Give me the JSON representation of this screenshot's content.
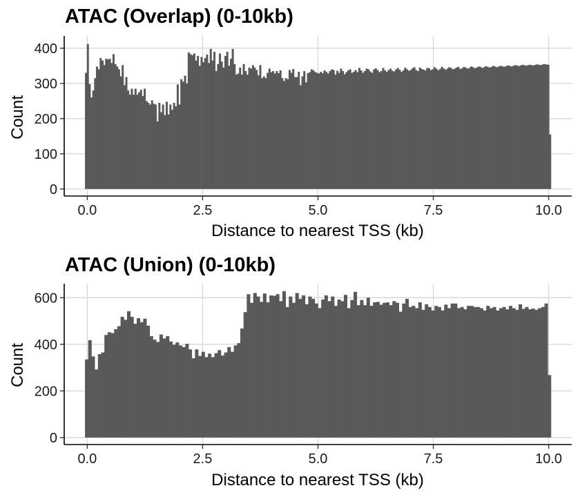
{
  "chart_data": [
    {
      "type": "bar",
      "title": "ATAC (Overlap) (0-10kb)",
      "xlabel": "Distance to nearest TSS (kb)",
      "ylabel": "Count",
      "xlim": [
        -0.5,
        10.5
      ],
      "ylim": [
        -20,
        435
      ],
      "xticks": [
        0.0,
        2.5,
        5.0,
        7.5,
        10.0
      ],
      "xtick_labels": [
        "0.0",
        "2.5",
        "5.0",
        "7.5",
        "10.0"
      ],
      "yticks": [
        0,
        100,
        200,
        300,
        400
      ],
      "yticks_labels": [
        "0",
        "100",
        "200",
        "300",
        "400"
      ],
      "bin_start": -0.05,
      "bin_width": 0.1,
      "values": [
        330,
        412,
        298,
        260,
        280,
        315,
        348,
        340,
        372,
        365,
        352,
        370,
        368,
        370,
        358,
        383,
        355,
        348,
        340,
        320,
        352,
        295,
        318,
        280,
        268,
        285,
        268,
        285,
        268,
        275,
        282,
        264,
        285,
        250,
        245,
        240,
        252,
        242,
        240,
        192,
        245,
        218,
        240,
        210,
        248,
        212,
        240,
        225,
        245,
        235,
        297,
        240,
        312,
        305,
        322,
        300,
        388,
        383,
        380,
        385,
        365,
        378,
        350,
        375,
        360,
        372,
        382,
        358,
        398,
        365,
        390,
        335,
        355,
        385,
        362,
        345,
        378,
        390,
        350,
        370,
        398,
        355,
        325,
        328,
        345,
        325,
        355,
        335,
        325,
        345,
        342,
        352,
        345,
        338,
        323,
        352,
        315,
        320,
        315,
        330,
        342,
        332,
        335,
        328,
        335,
        329,
        337,
        315,
        307,
        315,
        312,
        338,
        330,
        341,
        318,
        318,
        333,
        295,
        320,
        335,
        303,
        329,
        332,
        340,
        337,
        332,
        330,
        328,
        333,
        329,
        337,
        333,
        328,
        335,
        340,
        338,
        325,
        336,
        330,
        342,
        335,
        326,
        332,
        337,
        340,
        330,
        333,
        338,
        332,
        344,
        337,
        330,
        335,
        342,
        340,
        334,
        330,
        340,
        343,
        338,
        332,
        335,
        344,
        337,
        333,
        338,
        342,
        336,
        334,
        340,
        344,
        339,
        333,
        337,
        345,
        340,
        336,
        338,
        343,
        346,
        338,
        335,
        345,
        341,
        339,
        337,
        344,
        343,
        338,
        340,
        346,
        342,
        337,
        341,
        347,
        343,
        339,
        342,
        346,
        344,
        340,
        342,
        345,
        347,
        341,
        343,
        347,
        345,
        342,
        344,
        348,
        346,
        343,
        345,
        348,
        347,
        344,
        346,
        349,
        347,
        345,
        347,
        350,
        348,
        346,
        348,
        350,
        349,
        347,
        349,
        351,
        350,
        348,
        350,
        352,
        351,
        349,
        351,
        353,
        352,
        350,
        352,
        353,
        352,
        351,
        353,
        354,
        353,
        352,
        354,
        355,
        354,
        353,
        155
      ]
    },
    {
      "type": "bar",
      "title": "ATAC (Union) (0-10kb)",
      "xlabel": "Distance to nearest TSS (kb)",
      "ylabel": "Count",
      "xlim": [
        -0.5,
        10.5
      ],
      "ylim": [
        -30,
        660
      ],
      "xticks": [
        0.0,
        2.5,
        5.0,
        7.5,
        10.0
      ],
      "xtick_labels": [
        "0.0",
        "2.5",
        "5.0",
        "7.5",
        "10.0"
      ],
      "yticks": [
        0,
        200,
        400,
        600
      ],
      "yticks_labels": [
        "0",
        "200",
        "400",
        "600"
      ],
      "bin_start": -0.05,
      "bin_width": 0.1,
      "values": [
        335,
        418,
        348,
        292,
        358,
        365,
        440,
        452,
        448,
        465,
        478,
        518,
        505,
        542,
        518,
        488,
        512,
        495,
        510,
        480,
        435,
        420,
        410,
        442,
        425,
        435,
        412,
        398,
        408,
        395,
        388,
        402,
        378,
        340,
        378,
        350,
        368,
        345,
        360,
        345,
        362,
        375,
        352,
        365,
        388,
        368,
        395,
        405,
        468,
        538,
        615,
        578,
        620,
        605,
        582,
        618,
        580,
        610,
        608,
        615,
        585,
        628,
        560,
        605,
        578,
        620,
        595,
        610,
        572,
        605,
        595,
        575,
        555,
        592,
        610,
        585,
        605,
        565,
        592,
        585,
        612,
        555,
        590,
        625,
        568,
        590,
        568,
        600,
        565,
        580,
        582,
        570,
        578,
        580,
        568,
        585,
        578,
        540,
        575,
        595,
        560,
        565,
        555,
        580,
        548,
        572,
        560,
        545,
        565,
        560,
        545,
        570,
        555,
        575,
        575,
        555,
        560,
        550,
        565,
        565,
        560,
        560,
        555,
        545,
        565,
        555,
        560,
        545,
        555,
        560,
        550,
        565,
        555,
        548,
        572,
        552,
        560,
        550,
        553,
        548,
        555,
        560,
        575,
        268
      ]
    }
  ]
}
